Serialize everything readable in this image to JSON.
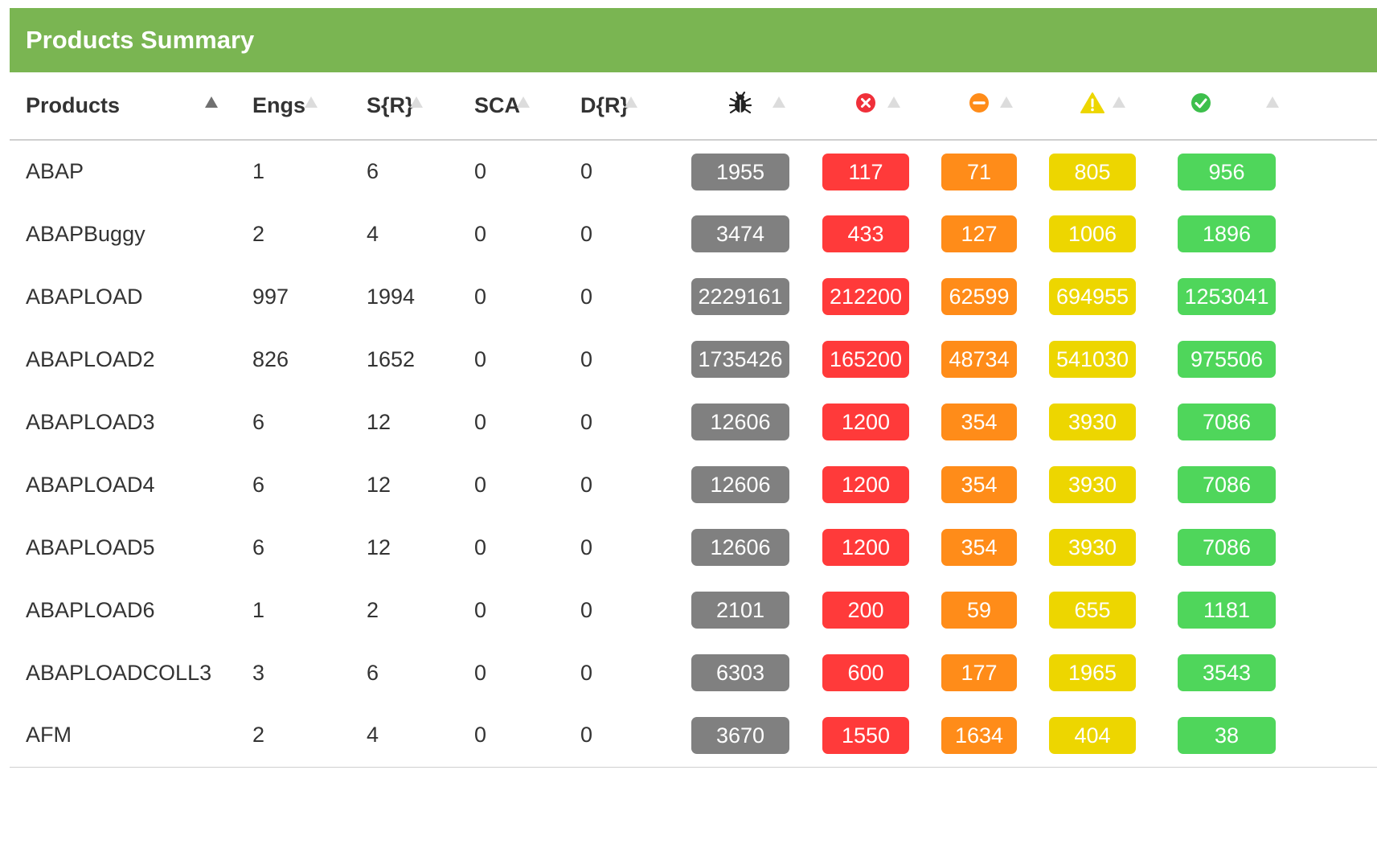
{
  "panel": {
    "title": "Products Summary"
  },
  "columns": {
    "products": "Products",
    "engs": "Engs",
    "sr": "S{R}",
    "sca": "SCA",
    "dr": "D{R}",
    "icons": [
      "bug-icon",
      "error-circle-icon",
      "minus-circle-icon",
      "warning-triangle-icon",
      "check-circle-icon"
    ]
  },
  "colors": {
    "header": "#7ab552",
    "total": "#808080",
    "critical": "#ff3a3a",
    "major": "#ff8c19",
    "minor": "#edd600",
    "passed": "#4fd65b"
  },
  "rows": [
    {
      "product": "ABAP",
      "engs": "1",
      "sr": "6",
      "sca": "0",
      "dr": "0",
      "total": "1955",
      "critical": "117",
      "major": "71",
      "minor": "805",
      "passed": "956"
    },
    {
      "product": "ABAPBuggy",
      "engs": "2",
      "sr": "4",
      "sca": "0",
      "dr": "0",
      "total": "3474",
      "critical": "433",
      "major": "127",
      "minor": "1006",
      "passed": "1896"
    },
    {
      "product": "ABAPLOAD",
      "engs": "997",
      "sr": "1994",
      "sca": "0",
      "dr": "0",
      "total": "2229161",
      "critical": "212200",
      "major": "62599",
      "minor": "694955",
      "passed": "1253041"
    },
    {
      "product": "ABAPLOAD2",
      "engs": "826",
      "sr": "1652",
      "sca": "0",
      "dr": "0",
      "total": "1735426",
      "critical": "165200",
      "major": "48734",
      "minor": "541030",
      "passed": "975506"
    },
    {
      "product": "ABAPLOAD3",
      "engs": "6",
      "sr": "12",
      "sca": "0",
      "dr": "0",
      "total": "12606",
      "critical": "1200",
      "major": "354",
      "minor": "3930",
      "passed": "7086"
    },
    {
      "product": "ABAPLOAD4",
      "engs": "6",
      "sr": "12",
      "sca": "0",
      "dr": "0",
      "total": "12606",
      "critical": "1200",
      "major": "354",
      "minor": "3930",
      "passed": "7086"
    },
    {
      "product": "ABAPLOAD5",
      "engs": "6",
      "sr": "12",
      "sca": "0",
      "dr": "0",
      "total": "12606",
      "critical": "1200",
      "major": "354",
      "minor": "3930",
      "passed": "7086"
    },
    {
      "product": "ABAPLOAD6",
      "engs": "1",
      "sr": "2",
      "sca": "0",
      "dr": "0",
      "total": "2101",
      "critical": "200",
      "major": "59",
      "minor": "655",
      "passed": "1181"
    },
    {
      "product": "ABAPLOADCOLL3",
      "engs": "3",
      "sr": "6",
      "sca": "0",
      "dr": "0",
      "total": "6303",
      "critical": "600",
      "major": "177",
      "minor": "1965",
      "passed": "3543"
    },
    {
      "product": "AFM",
      "engs": "2",
      "sr": "4",
      "sca": "0",
      "dr": "0",
      "total": "3670",
      "critical": "1550",
      "major": "1634",
      "minor": "404",
      "passed": "38"
    }
  ]
}
